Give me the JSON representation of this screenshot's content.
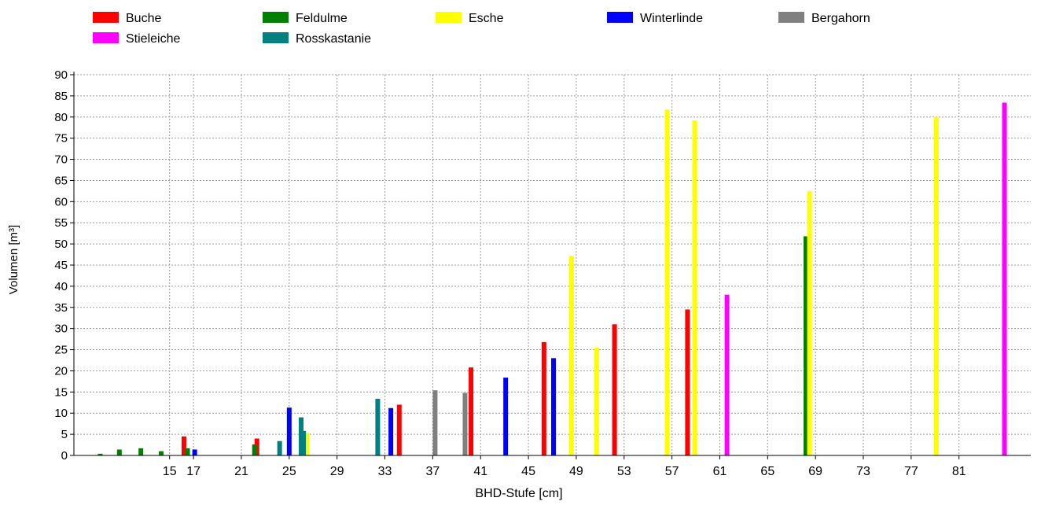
{
  "chart_data": {
    "type": "bar",
    "xlabel": "BHD-Stufe [cm]",
    "ylabel": "Volumen [m³]",
    "ylim": [
      0,
      90
    ],
    "yticks": [
      0,
      5,
      10,
      15,
      20,
      25,
      30,
      35,
      40,
      45,
      50,
      55,
      60,
      65,
      70,
      75,
      80,
      85,
      90
    ],
    "xlim": [
      7,
      87
    ],
    "xticks": [
      {
        "x": 15,
        "label": "15"
      },
      {
        "x": 17,
        "label": "17"
      },
      {
        "x": 21,
        "label": "21"
      },
      {
        "x": 25,
        "label": "25"
      },
      {
        "x": 29,
        "label": "29"
      },
      {
        "x": 33,
        "label": "33"
      },
      {
        "x": 37,
        "label": "37"
      },
      {
        "x": 41,
        "label": "41"
      },
      {
        "x": 45,
        "label": "45"
      },
      {
        "x": 49,
        "label": "49"
      },
      {
        "x": 53,
        "label": "53"
      },
      {
        "x": 57,
        "label": "57"
      },
      {
        "x": 61,
        "label": "61"
      },
      {
        "x": 65,
        "label": "65"
      },
      {
        "x": 69,
        "label": "69"
      },
      {
        "x": 73,
        "label": "73"
      },
      {
        "x": 77,
        "label": "77"
      },
      {
        "x": 81,
        "label": "81"
      }
    ],
    "grid": true,
    "legend_position": "top",
    "series": [
      {
        "name": "Buche",
        "color": "#ff0000",
        "points": [
          {
            "x": 16.2,
            "y": 4.5
          },
          {
            "x": 22.3,
            "y": 4.0
          },
          {
            "x": 34.2,
            "y": 12.0
          },
          {
            "x": 40.2,
            "y": 20.8
          },
          {
            "x": 46.3,
            "y": 26.8
          },
          {
            "x": 52.2,
            "y": 31.0
          },
          {
            "x": 58.3,
            "y": 34.5
          }
        ]
      },
      {
        "name": "Feldulme",
        "color": "#008000",
        "points": [
          {
            "x": 9.2,
            "y": 0.4
          },
          {
            "x": 10.8,
            "y": 1.4
          },
          {
            "x": 12.6,
            "y": 1.7
          },
          {
            "x": 14.3,
            "y": 1.0
          },
          {
            "x": 16.5,
            "y": 1.7
          },
          {
            "x": 22.1,
            "y": 2.6
          },
          {
            "x": 68.2,
            "y": 51.8
          }
        ]
      },
      {
        "name": "Esche",
        "color": "#ffff00",
        "points": [
          {
            "x": 26.5,
            "y": 5.3
          },
          {
            "x": 48.6,
            "y": 47.2
          },
          {
            "x": 50.7,
            "y": 25.5
          },
          {
            "x": 56.6,
            "y": 81.8
          },
          {
            "x": 58.9,
            "y": 79.2
          },
          {
            "x": 68.5,
            "y": 62.5
          },
          {
            "x": 79.1,
            "y": 80.0
          }
        ]
      },
      {
        "name": "Winterlinde",
        "color": "#0000ff",
        "points": [
          {
            "x": 17.1,
            "y": 1.4
          },
          {
            "x": 25.0,
            "y": 11.3
          },
          {
            "x": 33.5,
            "y": 11.2
          },
          {
            "x": 43.1,
            "y": 18.4
          },
          {
            "x": 47.1,
            "y": 23.0
          }
        ]
      },
      {
        "name": "Bergahorn",
        "color": "#808080",
        "points": [
          {
            "x": 37.2,
            "y": 15.4
          },
          {
            "x": 39.7,
            "y": 14.8
          }
        ]
      },
      {
        "name": "Stieleiche",
        "color": "#ff00ff",
        "points": [
          {
            "x": 61.6,
            "y": 38.0
          },
          {
            "x": 84.8,
            "y": 83.4
          }
        ]
      },
      {
        "name": "Rosskastanie",
        "color": "#008080",
        "points": [
          {
            "x": 24.2,
            "y": 3.4
          },
          {
            "x": 26.0,
            "y": 9.0
          },
          {
            "x": 26.2,
            "y": 5.8
          },
          {
            "x": 32.4,
            "y": 13.4
          }
        ]
      }
    ]
  }
}
